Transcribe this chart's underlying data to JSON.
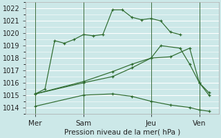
{
  "xlabel": "Pression niveau de la mer( hPa )",
  "bg_color": "#cce8e8",
  "grid_color": "#ffffff",
  "line_color": "#2d6a2d",
  "ylim": [
    1013.5,
    1022.5
  ],
  "yticks": [
    1014,
    1015,
    1016,
    1017,
    1018,
    1019,
    1020,
    1021,
    1022
  ],
  "xlim": [
    0,
    10
  ],
  "xtick_labels": [
    "Mer",
    "Sam",
    "Jeu",
    "Ven"
  ],
  "xtick_pos": [
    0.5,
    3.0,
    6.5,
    9.0
  ],
  "vline_pos": [
    0.5,
    3.0,
    6.5,
    9.0
  ],
  "lines": [
    {
      "x": [
        0.5,
        1.0,
        1.5,
        2.0,
        2.5,
        3.0,
        3.5,
        4.0,
        4.5,
        5.0,
        5.5,
        6.0,
        6.5,
        7.0,
        7.5,
        8.0
      ],
      "y": [
        1015.1,
        1015.5,
        1019.4,
        1019.2,
        1019.5,
        1019.9,
        1019.8,
        1019.9,
        1021.9,
        1021.9,
        1021.3,
        1021.1,
        1021.2,
        1021.0,
        1020.1,
        1019.9
      ]
    },
    {
      "x": [
        0.5,
        3.0,
        4.5,
        5.5,
        6.5,
        7.5,
        8.5,
        9.0,
        9.5
      ],
      "y": [
        1015.1,
        1016.1,
        1016.9,
        1017.5,
        1018.0,
        1018.1,
        1018.8,
        1016.0,
        1015.0
      ]
    },
    {
      "x": [
        0.5,
        3.0,
        4.5,
        5.5,
        6.5,
        7.0,
        8.0,
        8.5,
        9.0,
        9.5
      ],
      "y": [
        1015.1,
        1016.0,
        1016.5,
        1017.2,
        1018.0,
        1019.0,
        1018.8,
        1017.5,
        1016.0,
        1015.2
      ]
    },
    {
      "x": [
        0.5,
        3.0,
        4.5,
        5.5,
        6.5,
        7.5,
        8.5,
        9.0,
        9.5
      ],
      "y": [
        1014.1,
        1015.0,
        1015.1,
        1014.9,
        1014.5,
        1014.2,
        1014.0,
        1013.8,
        1013.7
      ]
    }
  ]
}
